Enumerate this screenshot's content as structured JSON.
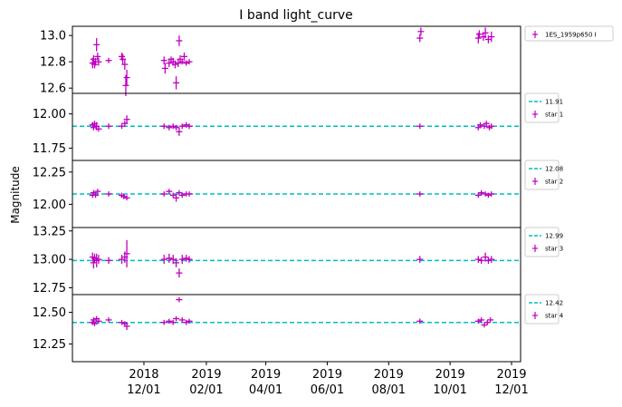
{
  "chart_data": {
    "type": "scatter",
    "title": "I band light_curve",
    "ylabel": "Magnitude",
    "xlabel": "",
    "y_inverted": true,
    "grid": false,
    "legend_placement": "outside-right",
    "x_ticks": [
      {
        "date": "2018-12-01",
        "year": "2018",
        "md": "12/01"
      },
      {
        "date": "2019-02-01",
        "year": "2019",
        "md": "02/01"
      },
      {
        "date": "2019-04-01",
        "year": "2019",
        "md": "04/01"
      },
      {
        "date": "2019-06-01",
        "year": "2019",
        "md": "06/01"
      },
      {
        "date": "2019-08-01",
        "year": "2019",
        "md": "08/01"
      },
      {
        "date": "2019-10-01",
        "year": "2019",
        "md": "10/01"
      },
      {
        "date": "2019-12-01",
        "year": "2019",
        "md": "12/01"
      }
    ],
    "xlim": [
      "2018-09-21",
      "2019-12-10"
    ],
    "colors": {
      "points": "#bf00bf",
      "reference": "#00bfbf"
    },
    "panels": [
      {
        "series_name": "1ES_1959p650 I",
        "ylim": [
          13.07,
          12.56
        ],
        "yticks": [
          "12.6",
          "12.8",
          "13.0"
        ],
        "reference": null,
        "points": [
          {
            "x": "2018-10-11",
            "y": 12.79,
            "e": 0.04
          },
          {
            "x": "2018-10-12",
            "y": 12.82,
            "e": 0.03
          },
          {
            "x": "2018-10-13",
            "y": 12.78,
            "e": 0.03
          },
          {
            "x": "2018-10-14",
            "y": 12.8,
            "e": 0.03
          },
          {
            "x": "2018-10-15",
            "y": 12.93,
            "e": 0.05
          },
          {
            "x": "2018-10-16",
            "y": 12.84,
            "e": 0.03
          },
          {
            "x": "2018-10-17",
            "y": 12.8,
            "e": 0.03
          },
          {
            "x": "2018-10-27",
            "y": 12.81,
            "e": 0.02
          },
          {
            "x": "2018-11-09",
            "y": 12.84,
            "e": 0.03
          },
          {
            "x": "2018-11-10",
            "y": 12.82,
            "e": 0.04
          },
          {
            "x": "2018-11-12",
            "y": 12.78,
            "e": 0.04
          },
          {
            "x": "2018-11-13",
            "y": 12.62,
            "e": 0.08
          },
          {
            "x": "2018-11-14",
            "y": 12.68,
            "e": 0.06
          },
          {
            "x": "2018-12-21",
            "y": 12.81,
            "e": 0.03
          },
          {
            "x": "2018-12-22",
            "y": 12.75,
            "e": 0.04
          },
          {
            "x": "2018-12-26",
            "y": 12.79,
            "e": 0.03
          },
          {
            "x": "2018-12-28",
            "y": 12.82,
            "e": 0.02
          },
          {
            "x": "2018-12-30",
            "y": 12.8,
            "e": 0.03
          },
          {
            "x": "2019-01-01",
            "y": 12.78,
            "e": 0.03
          },
          {
            "x": "2019-01-02",
            "y": 12.64,
            "e": 0.05
          },
          {
            "x": "2019-01-04",
            "y": 12.79,
            "e": 0.03
          },
          {
            "x": "2019-01-05",
            "y": 12.96,
            "e": 0.04
          },
          {
            "x": "2019-01-06",
            "y": 12.82,
            "e": 0.03
          },
          {
            "x": "2019-01-08",
            "y": 12.8,
            "e": 0.02
          },
          {
            "x": "2019-01-10",
            "y": 12.84,
            "e": 0.03
          },
          {
            "x": "2019-01-12",
            "y": 12.79,
            "e": 0.02
          },
          {
            "x": "2019-01-15",
            "y": 12.8,
            "e": 0.02
          },
          {
            "x": "2019-09-01",
            "y": 12.98,
            "e": 0.03
          },
          {
            "x": "2019-09-02",
            "y": 13.03,
            "e": 0.03
          },
          {
            "x": "2019-10-29",
            "y": 12.98,
            "e": 0.04
          },
          {
            "x": "2019-10-30",
            "y": 13.01,
            "e": 0.03
          },
          {
            "x": "2019-11-03",
            "y": 12.99,
            "e": 0.03
          },
          {
            "x": "2019-11-05",
            "y": 13.02,
            "e": 0.04
          },
          {
            "x": "2019-11-08",
            "y": 12.97,
            "e": 0.03
          },
          {
            "x": "2019-11-11",
            "y": 12.99,
            "e": 0.04
          }
        ]
      },
      {
        "series_name": "star 1",
        "ylim": [
          12.15,
          11.66
        ],
        "yticks": [
          "11.75",
          "12.00"
        ],
        "reference": {
          "value": 11.91,
          "label": "11.91"
        },
        "points": [
          {
            "x": "2018-10-11",
            "y": 11.92,
            "e": 0.02
          },
          {
            "x": "2018-10-12",
            "y": 11.9,
            "e": 0.02
          },
          {
            "x": "2018-10-13",
            "y": 11.93,
            "e": 0.02
          },
          {
            "x": "2018-10-15",
            "y": 11.91,
            "e": 0.03
          },
          {
            "x": "2018-10-17",
            "y": 11.89,
            "e": 0.02
          },
          {
            "x": "2018-10-27",
            "y": 11.91,
            "e": 0.02
          },
          {
            "x": "2018-11-09",
            "y": 11.91,
            "e": 0.02
          },
          {
            "x": "2018-11-12",
            "y": 11.93,
            "e": 0.02
          },
          {
            "x": "2018-11-14",
            "y": 11.96,
            "e": 0.03
          },
          {
            "x": "2018-12-21",
            "y": 11.91,
            "e": 0.02
          },
          {
            "x": "2018-12-26",
            "y": 11.9,
            "e": 0.02
          },
          {
            "x": "2018-12-30",
            "y": 11.91,
            "e": 0.02
          },
          {
            "x": "2019-01-02",
            "y": 11.9,
            "e": 0.02
          },
          {
            "x": "2019-01-05",
            "y": 11.87,
            "e": 0.03
          },
          {
            "x": "2019-01-08",
            "y": 11.91,
            "e": 0.02
          },
          {
            "x": "2019-01-12",
            "y": 11.92,
            "e": 0.02
          },
          {
            "x": "2019-01-15",
            "y": 11.91,
            "e": 0.02
          },
          {
            "x": "2019-09-01",
            "y": 11.91,
            "e": 0.02
          },
          {
            "x": "2019-10-29",
            "y": 11.9,
            "e": 0.02
          },
          {
            "x": "2019-10-31",
            "y": 11.92,
            "e": 0.02
          },
          {
            "x": "2019-11-04",
            "y": 11.91,
            "e": 0.02
          },
          {
            "x": "2019-11-06",
            "y": 11.93,
            "e": 0.02
          },
          {
            "x": "2019-11-09",
            "y": 11.9,
            "e": 0.02
          },
          {
            "x": "2019-11-11",
            "y": 11.91,
            "e": 0.02
          }
        ]
      },
      {
        "series_name": "star 2",
        "ylim": [
          12.34,
          11.82
        ],
        "yticks": [
          "12.00",
          "12.25"
        ],
        "reference": {
          "value": 12.08,
          "label": "12.08"
        },
        "points": [
          {
            "x": "2018-10-11",
            "y": 12.07,
            "e": 0.02
          },
          {
            "x": "2018-10-12",
            "y": 12.09,
            "e": 0.02
          },
          {
            "x": "2018-10-14",
            "y": 12.07,
            "e": 0.02
          },
          {
            "x": "2018-10-16",
            "y": 12.1,
            "e": 0.02
          },
          {
            "x": "2018-10-27",
            "y": 12.08,
            "e": 0.02
          },
          {
            "x": "2018-11-09",
            "y": 12.07,
            "e": 0.02
          },
          {
            "x": "2018-11-11",
            "y": 12.06,
            "e": 0.02
          },
          {
            "x": "2018-11-14",
            "y": 12.05,
            "e": 0.02
          },
          {
            "x": "2018-12-21",
            "y": 12.08,
            "e": 0.02
          },
          {
            "x": "2018-12-26",
            "y": 12.1,
            "e": 0.02
          },
          {
            "x": "2018-12-30",
            "y": 12.07,
            "e": 0.02
          },
          {
            "x": "2019-01-02",
            "y": 12.05,
            "e": 0.03
          },
          {
            "x": "2019-01-05",
            "y": 12.09,
            "e": 0.02
          },
          {
            "x": "2019-01-08",
            "y": 12.07,
            "e": 0.02
          },
          {
            "x": "2019-01-12",
            "y": 12.08,
            "e": 0.02
          },
          {
            "x": "2019-01-15",
            "y": 12.08,
            "e": 0.02
          },
          {
            "x": "2019-09-01",
            "y": 12.08,
            "e": 0.02
          },
          {
            "x": "2019-10-29",
            "y": 12.07,
            "e": 0.02
          },
          {
            "x": "2019-11-01",
            "y": 12.09,
            "e": 0.02
          },
          {
            "x": "2019-11-05",
            "y": 12.08,
            "e": 0.02
          },
          {
            "x": "2019-11-08",
            "y": 12.07,
            "e": 0.02
          },
          {
            "x": "2019-11-11",
            "y": 12.08,
            "e": 0.02
          }
        ]
      },
      {
        "series_name": "star 3",
        "ylim": [
          13.28,
          12.69
        ],
        "yticks": [
          "12.75",
          "13.00",
          "13.25"
        ],
        "reference": {
          "value": 12.99,
          "label": "12.99"
        },
        "points": [
          {
            "x": "2018-10-11",
            "y": 13.02,
            "e": 0.04
          },
          {
            "x": "2018-10-12",
            "y": 12.97,
            "e": 0.05
          },
          {
            "x": "2018-10-13",
            "y": 13.01,
            "e": 0.04
          },
          {
            "x": "2018-10-15",
            "y": 12.99,
            "e": 0.06
          },
          {
            "x": "2018-10-17",
            "y": 13.0,
            "e": 0.04
          },
          {
            "x": "2018-10-27",
            "y": 12.99,
            "e": 0.03
          },
          {
            "x": "2018-11-09",
            "y": 13.0,
            "e": 0.04
          },
          {
            "x": "2018-11-12",
            "y": 13.02,
            "e": 0.05
          },
          {
            "x": "2018-11-14",
            "y": 13.05,
            "e": 0.12
          },
          {
            "x": "2018-12-21",
            "y": 13.0,
            "e": 0.04
          },
          {
            "x": "2018-12-26",
            "y": 13.01,
            "e": 0.04
          },
          {
            "x": "2018-12-30",
            "y": 13.0,
            "e": 0.04
          },
          {
            "x": "2019-01-02",
            "y": 12.97,
            "e": 0.04
          },
          {
            "x": "2019-01-05",
            "y": 12.88,
            "e": 0.04
          },
          {
            "x": "2019-01-08",
            "y": 13.0,
            "e": 0.04
          },
          {
            "x": "2019-01-12",
            "y": 13.01,
            "e": 0.03
          },
          {
            "x": "2019-01-15",
            "y": 13.0,
            "e": 0.03
          },
          {
            "x": "2019-09-01",
            "y": 13.0,
            "e": 0.03
          },
          {
            "x": "2019-10-29",
            "y": 13.0,
            "e": 0.03
          },
          {
            "x": "2019-11-01",
            "y": 12.99,
            "e": 0.03
          },
          {
            "x": "2019-11-05",
            "y": 13.02,
            "e": 0.04
          },
          {
            "x": "2019-11-08",
            "y": 12.99,
            "e": 0.03
          },
          {
            "x": "2019-11-11",
            "y": 13.0,
            "e": 0.03
          }
        ]
      },
      {
        "series_name": "star 4",
        "ylim": [
          12.64,
          12.11
        ],
        "yticks": [
          "12.25",
          "12.50"
        ],
        "reference": {
          "value": 12.42,
          "label": "12.42"
        },
        "points": [
          {
            "x": "2018-10-11",
            "y": 12.42,
            "e": 0.02
          },
          {
            "x": "2018-10-12",
            "y": 12.44,
            "e": 0.02
          },
          {
            "x": "2018-10-13",
            "y": 12.41,
            "e": 0.02
          },
          {
            "x": "2018-10-15",
            "y": 12.45,
            "e": 0.02
          },
          {
            "x": "2018-10-17",
            "y": 12.43,
            "e": 0.02
          },
          {
            "x": "2018-10-27",
            "y": 12.44,
            "e": 0.02
          },
          {
            "x": "2018-11-09",
            "y": 12.42,
            "e": 0.02
          },
          {
            "x": "2018-11-12",
            "y": 12.41,
            "e": 0.02
          },
          {
            "x": "2018-11-14",
            "y": 12.39,
            "e": 0.03
          },
          {
            "x": "2018-12-21",
            "y": 12.42,
            "e": 0.02
          },
          {
            "x": "2018-12-26",
            "y": 12.43,
            "e": 0.02
          },
          {
            "x": "2018-12-30",
            "y": 12.42,
            "e": 0.02
          },
          {
            "x": "2019-01-02",
            "y": 12.45,
            "e": 0.02
          },
          {
            "x": "2019-01-05",
            "y": 12.6,
            "e": 0.02
          },
          {
            "x": "2019-01-08",
            "y": 12.44,
            "e": 0.02
          },
          {
            "x": "2019-01-12",
            "y": 12.42,
            "e": 0.02
          },
          {
            "x": "2019-01-15",
            "y": 12.43,
            "e": 0.02
          },
          {
            "x": "2019-09-01",
            "y": 12.43,
            "e": 0.02
          },
          {
            "x": "2019-10-29",
            "y": 12.43,
            "e": 0.02
          },
          {
            "x": "2019-11-01",
            "y": 12.44,
            "e": 0.02
          },
          {
            "x": "2019-11-04",
            "y": 12.4,
            "e": 0.02
          },
          {
            "x": "2019-11-07",
            "y": 12.42,
            "e": 0.02
          },
          {
            "x": "2019-11-10",
            "y": 12.44,
            "e": 0.02
          }
        ]
      }
    ]
  }
}
